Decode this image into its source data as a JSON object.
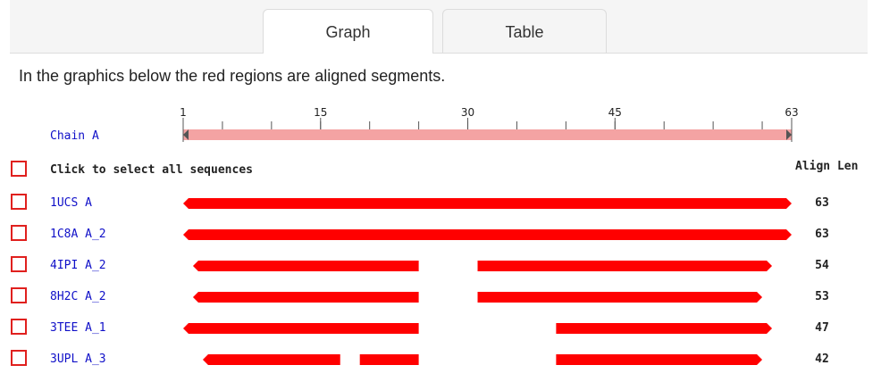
{
  "tabs": [
    {
      "label": "Graph",
      "active": true
    },
    {
      "label": "Table",
      "active": false
    }
  ],
  "intro": "In the graphics below the red regions are aligned segments.",
  "ruler": {
    "start": 1,
    "end": 63,
    "ticks": [
      1,
      15,
      30,
      45,
      63
    ],
    "chain_label": "Chain A",
    "bar_color": "#f4a3a3"
  },
  "select_all_label": "Click to select all sequences",
  "align_len_header": "Align Len",
  "segment_color": "#ff0000",
  "checkbox_color": "#e0201e",
  "sequences": [
    {
      "name": "1UCS A",
      "align_len": "63",
      "segments": [
        [
          1,
          63
        ]
      ]
    },
    {
      "name": "1C8A A_2",
      "align_len": "63",
      "segments": [
        [
          1,
          63
        ]
      ]
    },
    {
      "name": "4IPI A_2",
      "align_len": "54",
      "segments": [
        [
          2,
          25
        ],
        [
          31,
          61
        ]
      ]
    },
    {
      "name": "8H2C A_2",
      "align_len": "53",
      "segments": [
        [
          2,
          25
        ],
        [
          31,
          60
        ]
      ]
    },
    {
      "name": "3TEE A_1",
      "align_len": "47",
      "segments": [
        [
          1,
          25
        ],
        [
          39,
          61
        ]
      ]
    },
    {
      "name": "3UPL A_3",
      "align_len": "42",
      "segments": [
        [
          3,
          17
        ],
        [
          19,
          25
        ],
        [
          39,
          60
        ]
      ]
    }
  ]
}
